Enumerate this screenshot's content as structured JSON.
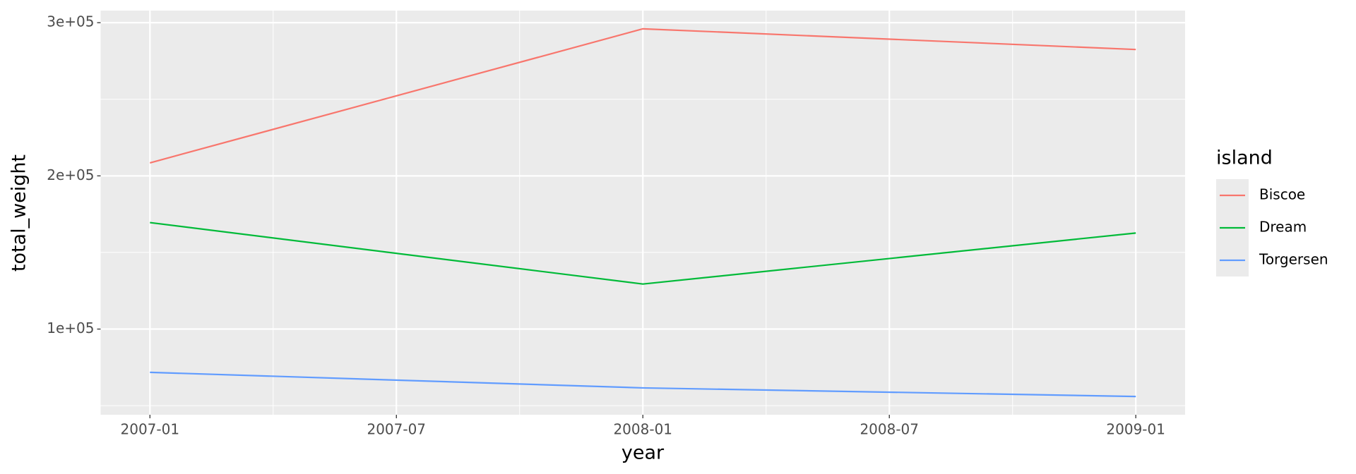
{
  "chart_data": {
    "type": "line",
    "x_label": "year",
    "y_label": "total_weight",
    "legend_title": "island",
    "x": [
      "2007-01",
      "2008-01",
      "2009-01"
    ],
    "xticks": [
      "2007-01",
      "2007-07",
      "2008-01",
      "2008-07",
      "2009-01"
    ],
    "ylim": [
      44070,
      307900
    ],
    "yticks": [
      {
        "value": 100000,
        "label": "1e+05"
      },
      {
        "value": 200000,
        "label": "2e+05"
      },
      {
        "value": 300000,
        "label": "3e+05"
      }
    ],
    "grid": true,
    "legend": "right",
    "series": [
      {
        "name": "Biscoe",
        "color": "#f8766d",
        "values": [
          208500,
          296000,
          282500
        ]
      },
      {
        "name": "Dream",
        "color": "#00ba38",
        "values": [
          169500,
          129400,
          162700
        ]
      },
      {
        "name": "Torgersen",
        "color": "#619cff",
        "values": [
          71750,
          61600,
          56000
        ]
      }
    ]
  }
}
